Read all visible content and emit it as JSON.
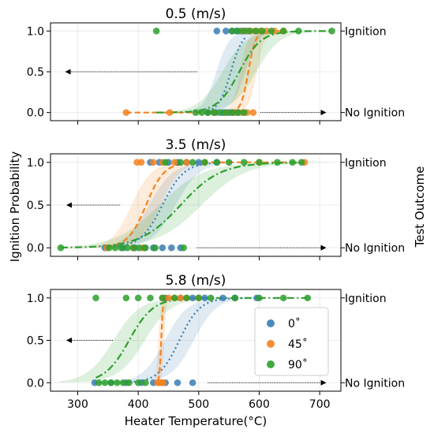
{
  "figure": {
    "ylabel_left": "Ignition Probability",
    "ylabel_right": "Test Outcome",
    "xlabel": "Heater Temperature(°C)",
    "right_tick_labels": [
      "No Ignition",
      "Ignition"
    ],
    "colors": {
      "deg0": "#3a7db5",
      "deg45": "#f58220",
      "deg90": "#2ca02c"
    }
  },
  "legend": {
    "placement": "lower-right of bottom panel",
    "entries": [
      {
        "name": "0˚",
        "color": "#3a7db5"
      },
      {
        "name": "45˚",
        "color": "#f58220"
      },
      {
        "name": "90˚",
        "color": "#2ca02c"
      }
    ]
  },
  "chart_data": [
    {
      "type": "scatter",
      "title": "0.5 (m/s)",
      "xlim": [
        255,
        735
      ],
      "ylim": [
        -0.1,
        1.1
      ],
      "xticks": [
        300,
        400,
        500,
        600,
        700
      ],
      "yticks": [
        0.0,
        0.5,
        1.0
      ],
      "grid": true,
      "arrows": [
        {
          "from": 497,
          "to": 280,
          "y": 0.5
        },
        {
          "from": 602,
          "to": 710,
          "y": 0.0
        }
      ],
      "series": [
        {
          "name": "0˚",
          "color": "#3a7db5",
          "line": "dotted",
          "curve": {
            "mid": 553,
            "width": 10,
            "band": 24
          },
          "points": {
            "x0": [
              515,
              528,
              540,
              550,
              558,
              565
            ],
            "x1": [
              530,
              545,
              555,
              562,
              570,
              580
            ]
          }
        },
        {
          "name": "45˚",
          "color": "#f58220",
          "line": "dashed",
          "curve": {
            "mid": 582,
            "width": 6,
            "band": 14
          },
          "points": {
            "x0": [
              380,
              452,
              525,
              545,
              560,
              572,
              580,
              590
            ],
            "x1": [
              573,
              583,
              593,
              602,
              612,
              625,
              640
            ]
          }
        },
        {
          "name": "90˚",
          "color": "#2ca02c",
          "line": "dashdot",
          "curve": {
            "mid": 567,
            "width": 18,
            "band": 28
          },
          "points": {
            "x0": [
              495,
              505,
              515,
              525,
              535,
              545,
              555,
              565,
              575
            ],
            "x1": [
              430,
              555,
              565,
              575,
              585,
              595,
              605,
              620,
              640,
              665,
              720
            ]
          }
        }
      ]
    },
    {
      "type": "scatter",
      "title": "3.5 (m/s)",
      "xlim": [
        255,
        735
      ],
      "ylim": [
        -0.1,
        1.1
      ],
      "xticks": [
        300,
        400,
        500,
        600,
        700
      ],
      "yticks": [
        0.0,
        0.5,
        1.0
      ],
      "grid": true,
      "arrows": [
        {
          "from": 370,
          "to": 282,
          "y": 0.5
        },
        {
          "from": 497,
          "to": 710,
          "y": 0.0
        }
      ],
      "series": [
        {
          "name": "0˚",
          "color": "#3a7db5",
          "line": "dotted",
          "curve": {
            "mid": 440,
            "width": 18,
            "band": 22
          },
          "points": {
            "x0": [
              345,
              375,
              395,
              410,
              425,
              440,
              455,
              470
            ],
            "x1": [
              420,
              435,
              450,
              465,
              480,
              500,
              530
            ]
          }
        },
        {
          "name": "45˚",
          "color": "#f58220",
          "line": "dashed",
          "curve": {
            "mid": 413,
            "width": 15,
            "band": 24
          },
          "points": {
            "x0": [
              348,
              392,
              408
            ],
            "x1": [
              398,
              405,
              425,
              440,
              460,
              480,
              510,
              600,
              675
            ]
          }
        },
        {
          "name": "90˚",
          "color": "#2ca02c",
          "line": "dashdot",
          "curve": {
            "mid": 470,
            "width": 33,
            "band": 35
          },
          "points": {
            "x0": [
              272,
              352,
              362,
              372,
              382,
              392,
              402,
              412,
              428,
              475
            ],
            "x1": [
              445,
              470,
              490,
              510,
              530,
              550,
              575,
              600,
              630,
              655,
              670
            ]
          }
        }
      ]
    },
    {
      "type": "scatter",
      "title": "5.8 (m/s)",
      "xlim": [
        255,
        735
      ],
      "ylim": [
        -0.1,
        1.1
      ],
      "xticks": [
        300,
        400,
        500,
        600,
        700
      ],
      "yticks": [
        0.0,
        0.5,
        1.0
      ],
      "grid": true,
      "arrows": [
        {
          "from": 358,
          "to": 282,
          "y": 0.5
        },
        {
          "from": 515,
          "to": 710,
          "y": 0.0
        }
      ],
      "series": [
        {
          "name": "0˚",
          "color": "#3a7db5",
          "line": "dotted",
          "curve": {
            "mid": 468,
            "width": 17,
            "band": 24
          },
          "points": {
            "x0": [
              328,
              355,
              380,
              405,
              425,
              445,
              465,
              490
            ],
            "x1": [
              445,
              470,
              490,
              510,
              540,
              560,
              596
            ]
          }
        },
        {
          "name": "45˚",
          "color": "#f58220",
          "line": "dashed",
          "curve": {
            "mid": 438,
            "width": 1.5,
            "band": 5
          },
          "points": {
            "x0": [
              432,
              435,
              437,
              439,
              441
            ],
            "x1": [
              440,
              450,
              460,
              470,
              480,
              500
            ]
          }
        },
        {
          "name": "90˚",
          "color": "#2ca02c",
          "line": "dashdot",
          "curve": {
            "mid": 385,
            "width": 20,
            "band": 26
          },
          "points": {
            "x0": [
              335,
              345,
              355,
              365,
              375,
              385,
              400,
              412
            ],
            "x1": [
              330,
              380,
              400,
              420,
              440,
              460,
              480,
              500,
              520,
              560,
              600,
              640,
              680
            ]
          }
        }
      ]
    }
  ]
}
